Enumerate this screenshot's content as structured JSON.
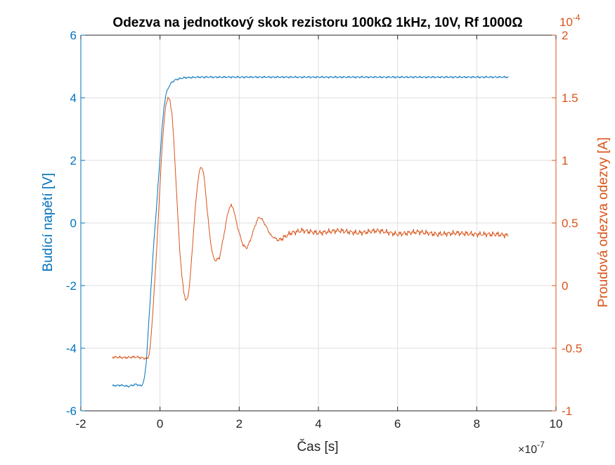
{
  "chart_data": {
    "type": "line",
    "title": "Odezva na jednotkový skok rezistoru 100kΩ 1kHz, 10V, Rf 1000Ω",
    "xlabel": "Čas [s]",
    "x_exponent_label": "×10",
    "x_exponent_power": "-7",
    "x_multiplier": 1e-07,
    "xlim": [
      -2,
      10
    ],
    "x_ticks": [
      -2,
      0,
      2,
      4,
      6,
      8,
      10
    ],
    "grid": true,
    "y_left": {
      "label": "Budící napětí [V]",
      "lim": [
        -6,
        6
      ],
      "ticks": [
        -6,
        -4,
        -2,
        0,
        2,
        4,
        6
      ],
      "color": "#0072BD"
    },
    "y_right": {
      "label": "Proudová odezva odezvy [A]",
      "exponent_label": "10",
      "exponent_power": "-4",
      "lim": [
        -1,
        2
      ],
      "ticks": [
        -1,
        -0.5,
        0,
        0.5,
        1,
        1.5,
        2
      ],
      "color": "#D95319"
    },
    "series": [
      {
        "axis": "left",
        "color": "#0072BD",
        "points": [
          [
            -1.2,
            -5.2
          ],
          [
            -1.0,
            -5.18
          ],
          [
            -0.8,
            -5.22
          ],
          [
            -0.6,
            -5.15
          ],
          [
            -0.5,
            -5.2
          ],
          [
            -0.45,
            -5.18
          ],
          [
            -0.4,
            -5.0
          ],
          [
            -0.35,
            -4.5
          ],
          [
            -0.3,
            -3.5
          ],
          [
            -0.25,
            -2.5
          ],
          [
            -0.2,
            -1.5
          ],
          [
            -0.15,
            -0.5
          ],
          [
            -0.1,
            0.3
          ],
          [
            -0.05,
            1.2
          ],
          [
            0.0,
            2.1
          ],
          [
            0.05,
            3.0
          ],
          [
            0.1,
            3.7
          ],
          [
            0.15,
            4.1
          ],
          [
            0.2,
            4.3
          ],
          [
            0.3,
            4.5
          ],
          [
            0.4,
            4.58
          ],
          [
            0.6,
            4.64
          ],
          [
            1.0,
            4.66
          ],
          [
            2.0,
            4.66
          ],
          [
            4.0,
            4.66
          ],
          [
            6.0,
            4.66
          ],
          [
            8.0,
            4.66
          ],
          [
            8.8,
            4.66
          ]
        ]
      },
      {
        "axis": "right",
        "color": "#D95319",
        "points": [
          [
            -1.2,
            -0.57
          ],
          [
            -0.9,
            -0.575
          ],
          [
            -0.6,
            -0.57
          ],
          [
            -0.4,
            -0.58
          ],
          [
            -0.3,
            -0.58
          ],
          [
            -0.25,
            -0.5
          ],
          [
            -0.2,
            -0.3
          ],
          [
            -0.15,
            -0.05
          ],
          [
            -0.1,
            0.2
          ],
          [
            -0.05,
            0.5
          ],
          [
            0.0,
            0.8
          ],
          [
            0.05,
            1.1
          ],
          [
            0.1,
            1.3
          ],
          [
            0.15,
            1.45
          ],
          [
            0.2,
            1.5
          ],
          [
            0.25,
            1.48
          ],
          [
            0.3,
            1.38
          ],
          [
            0.35,
            1.15
          ],
          [
            0.4,
            0.85
          ],
          [
            0.45,
            0.55
          ],
          [
            0.5,
            0.28
          ],
          [
            0.55,
            0.08
          ],
          [
            0.6,
            -0.05
          ],
          [
            0.65,
            -0.12
          ],
          [
            0.7,
            -0.1
          ],
          [
            0.75,
            0.02
          ],
          [
            0.8,
            0.22
          ],
          [
            0.85,
            0.45
          ],
          [
            0.9,
            0.65
          ],
          [
            0.95,
            0.82
          ],
          [
            1.0,
            0.92
          ],
          [
            1.05,
            0.95
          ],
          [
            1.1,
            0.9
          ],
          [
            1.15,
            0.75
          ],
          [
            1.2,
            0.58
          ],
          [
            1.25,
            0.42
          ],
          [
            1.3,
            0.3
          ],
          [
            1.35,
            0.22
          ],
          [
            1.4,
            0.2
          ],
          [
            1.5,
            0.22
          ],
          [
            1.6,
            0.38
          ],
          [
            1.7,
            0.56
          ],
          [
            1.75,
            0.62
          ],
          [
            1.8,
            0.64
          ],
          [
            1.85,
            0.62
          ],
          [
            1.9,
            0.55
          ],
          [
            1.95,
            0.48
          ],
          [
            2.0,
            0.42
          ],
          [
            2.1,
            0.32
          ],
          [
            2.2,
            0.3
          ],
          [
            2.3,
            0.38
          ],
          [
            2.4,
            0.48
          ],
          [
            2.5,
            0.55
          ],
          [
            2.6,
            0.52
          ],
          [
            2.7,
            0.46
          ],
          [
            2.8,
            0.4
          ],
          [
            3.0,
            0.36
          ],
          [
            3.3,
            0.42
          ],
          [
            3.6,
            0.44
          ],
          [
            4.0,
            0.42
          ],
          [
            4.5,
            0.44
          ],
          [
            5.0,
            0.42
          ],
          [
            5.5,
            0.44
          ],
          [
            6.0,
            0.41
          ],
          [
            6.5,
            0.43
          ],
          [
            7.0,
            0.41
          ],
          [
            7.5,
            0.42
          ],
          [
            8.0,
            0.41
          ],
          [
            8.5,
            0.41
          ],
          [
            8.8,
            0.4
          ]
        ]
      }
    ]
  }
}
